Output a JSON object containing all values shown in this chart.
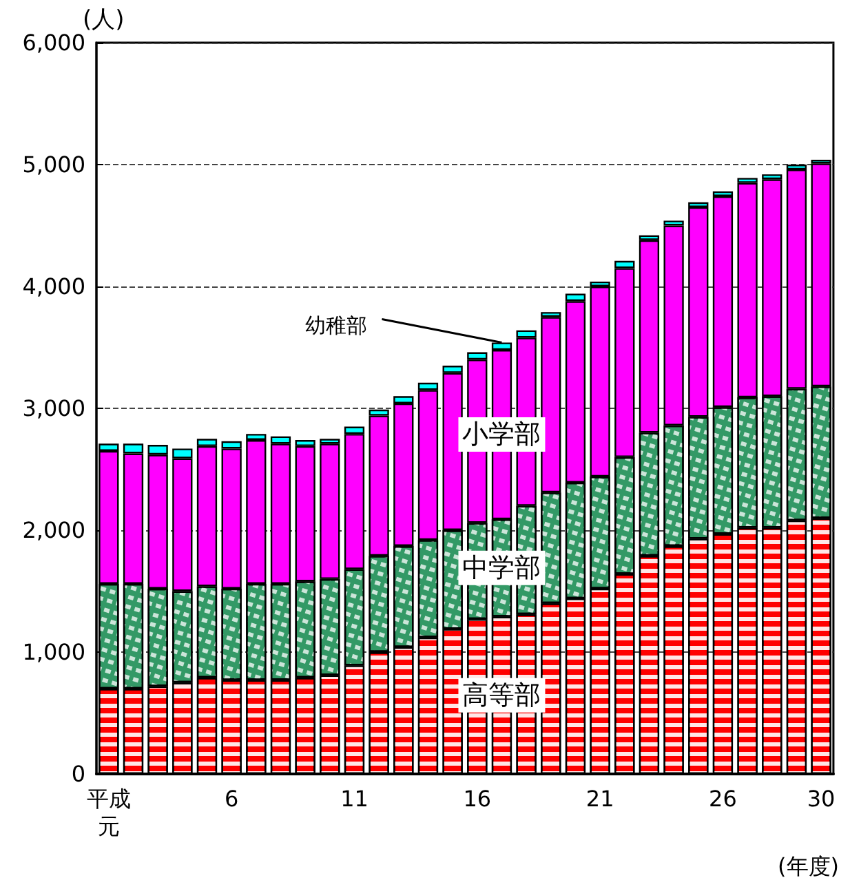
{
  "chart_data": {
    "type": "bar",
    "stacked": true,
    "ylabel": "(人)",
    "xlabel": "(年度)",
    "categories": [
      "平成元",
      null,
      null,
      null,
      null,
      "6",
      null,
      null,
      null,
      null,
      "11",
      null,
      null,
      null,
      null,
      "16",
      null,
      null,
      null,
      null,
      "21",
      null,
      null,
      null,
      null,
      "26",
      null,
      null,
      null,
      "30"
    ],
    "series": [
      {
        "name": "高等部",
        "color": "#ff0000",
        "values": [
          700,
          700,
          720,
          750,
          790,
          770,
          770,
          770,
          790,
          810,
          890,
          1000,
          1040,
          1120,
          1190,
          1270,
          1290,
          1310,
          1400,
          1440,
          1520,
          1640,
          1790,
          1870,
          1930,
          1970,
          2020,
          2020,
          2080,
          2100
        ]
      },
      {
        "name": "中学部",
        "color": "#339966",
        "values": [
          860,
          860,
          800,
          750,
          750,
          750,
          790,
          790,
          790,
          790,
          790,
          790,
          830,
          800,
          810,
          790,
          800,
          890,
          910,
          950,
          920,
          960,
          1010,
          990,
          1000,
          1040,
          1070,
          1080,
          1080,
          1080
        ]
      },
      {
        "name": "小学部",
        "color": "#ff00ff",
        "values": [
          1090,
          1070,
          1100,
          1090,
          1150,
          1150,
          1180,
          1150,
          1110,
          1110,
          1110,
          1150,
          1170,
          1230,
          1290,
          1340,
          1390,
          1380,
          1440,
          1490,
          1560,
          1550,
          1580,
          1640,
          1720,
          1730,
          1760,
          1780,
          1800,
          1830
        ]
      },
      {
        "name": "幼稚部",
        "color": "#00ffff",
        "values": [
          60,
          80,
          80,
          80,
          60,
          60,
          50,
          60,
          50,
          40,
          60,
          50,
          60,
          60,
          60,
          60,
          60,
          60,
          40,
          60,
          40,
          60,
          40,
          40,
          40,
          40,
          40,
          40,
          40,
          30
        ]
      }
    ],
    "ylim": [
      0,
      6000
    ],
    "yticks": [
      0,
      {
        "value": 1000,
        "label": "1,000"
      },
      {
        "value": 2000,
        "label": "2,000"
      },
      {
        "value": 3000,
        "label": "3,000"
      },
      {
        "value": 4000,
        "label": "4,000"
      },
      {
        "value": 5000,
        "label": "5,000"
      },
      {
        "value": 6000,
        "label": "6,000"
      }
    ],
    "grid": "y",
    "legend": false
  }
}
